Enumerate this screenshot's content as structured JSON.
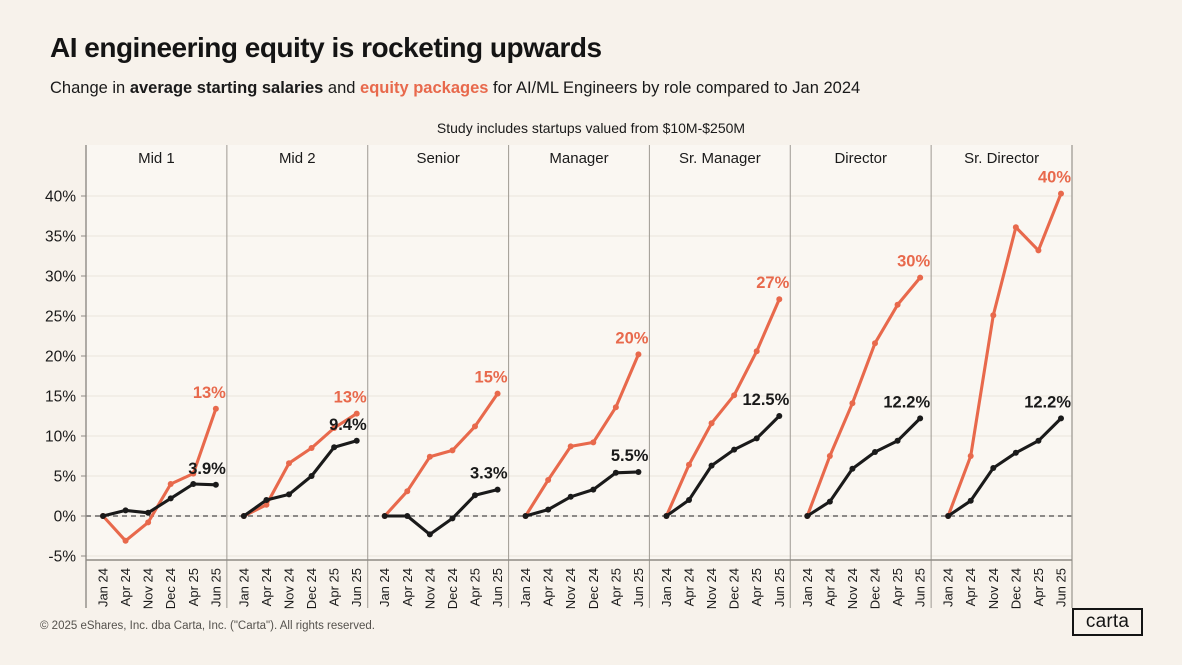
{
  "header": {
    "title": "AI engineering equity is rocketing upwards",
    "subtitle": {
      "part1": "Change in ",
      "bold_black": "average starting salaries",
      "part2": " and ",
      "bold_orange": "equity packages",
      "part3": " for AI/ML Engineers by role compared to Jan 2024"
    },
    "note": "Study includes startups valued from $10M-$250M"
  },
  "footer": {
    "copyright": "© 2025 eShares, Inc. dba Carta, Inc. (\"Carta\"). All rights reserved.",
    "logo_text": "carta"
  },
  "colors": {
    "background": "#F7F2EB",
    "plot_background": "#FAF7F2",
    "equity": "#E8694C",
    "salary": "#1A1A1A",
    "gridline": "#E9E4DC",
    "separator": "#A6A29B",
    "axis": "#8F8B85",
    "zero_line": "#4A4A4A",
    "tick_text": "#1A1A1A"
  },
  "chart_data": {
    "type": "line",
    "categories": [
      "Jan 24",
      "Apr 24",
      "Nov 24",
      "Dec 24",
      "Apr 25",
      "Jun 25"
    ],
    "y_ticks": [
      40,
      35,
      30,
      25,
      20,
      15,
      10,
      5,
      0,
      -5
    ],
    "y_tick_suffix": "%",
    "ylim": [
      -5,
      40
    ],
    "grid": true,
    "series_legend": {
      "equity": "equity packages",
      "salary": "average starting salaries"
    },
    "panels": [
      {
        "role": "Mid 1",
        "equity": [
          0,
          -3.1,
          -0.8,
          4.0,
          5.3,
          13.4
        ],
        "equity_label": "13%",
        "salary": [
          0,
          0.7,
          0.4,
          2.2,
          4.0,
          3.9
        ],
        "salary_label": "3.9%"
      },
      {
        "role": "Mid 2",
        "equity": [
          0,
          1.4,
          6.6,
          8.5,
          11.0,
          12.8
        ],
        "equity_label": "13%",
        "salary": [
          0,
          2.0,
          2.7,
          5.0,
          8.6,
          9.4
        ],
        "salary_label": "9.4%"
      },
      {
        "role": "Senior",
        "equity": [
          0,
          3.1,
          7.4,
          8.2,
          11.2,
          15.3
        ],
        "equity_label": "15%",
        "salary": [
          0,
          0,
          -2.3,
          -0.3,
          2.6,
          3.3
        ],
        "salary_label": "3.3%"
      },
      {
        "role": "Manager",
        "equity": [
          0,
          4.5,
          8.7,
          9.2,
          13.6,
          20.2
        ],
        "equity_label": "20%",
        "salary": [
          0,
          0.8,
          2.4,
          3.3,
          5.4,
          5.5
        ],
        "salary_label": "5.5%"
      },
      {
        "role": "Sr. Manager",
        "equity": [
          0,
          6.4,
          11.6,
          15.1,
          20.6,
          27.1
        ],
        "equity_label": "27%",
        "salary": [
          0,
          2.0,
          6.3,
          8.3,
          9.7,
          12.5
        ],
        "salary_label": "12.5%"
      },
      {
        "role": "Director",
        "equity": [
          0,
          7.5,
          14.1,
          21.6,
          26.4,
          29.8
        ],
        "equity_label": "30%",
        "salary": [
          0,
          1.8,
          5.9,
          8.0,
          9.4,
          12.2
        ],
        "salary_label": "12.2%"
      },
      {
        "role": "Sr. Director",
        "equity": [
          0,
          7.5,
          25.1,
          36.1,
          33.2,
          40.3
        ],
        "equity_label": "40%",
        "salary": [
          0,
          1.9,
          6.0,
          7.9,
          9.4,
          12.2
        ],
        "salary_label": "12.2%"
      }
    ]
  }
}
